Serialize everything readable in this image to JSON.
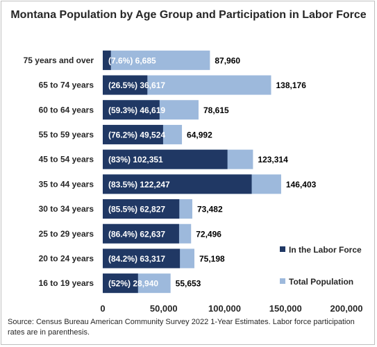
{
  "chart_data": {
    "type": "bar",
    "orientation": "horizontal",
    "title": "Montana Population by Age Group and Participation in Labor Force",
    "categories": [
      "75 years and over",
      "65 to 74 years",
      "60 to 64 years",
      "55 to 59 years",
      "45 to 54 years",
      "35 to 44 years",
      "30 to 34 years",
      "25 to 29 years",
      "20 to 24 years",
      "16 to 19 years"
    ],
    "series": [
      {
        "name": "In the Labor Force",
        "color": "#203864",
        "values": [
          6685,
          36617,
          46619,
          49524,
          102351,
          122247,
          62827,
          62637,
          63317,
          28940
        ],
        "labels": [
          "(7.6%) 6,685",
          "(26.5%) 36,617",
          "(59.3%) 46,619",
          "(76.2%) 49,524",
          "(83%) 102,351",
          "(83.5%) 122,247",
          "(85.5%) 62,827",
          "(86.4%) 62,637",
          "(84.2%) 63,317",
          "(52%) 28,940"
        ]
      },
      {
        "name": "Total Population",
        "color": "#9db9dc",
        "values": [
          87960,
          138176,
          78615,
          64992,
          123314,
          146403,
          73482,
          72496,
          75198,
          55653
        ],
        "labels": [
          "87,960",
          "138,176",
          "78,615",
          "64,992",
          "123,314",
          "146,403",
          "73,482",
          "72,496",
          "75,198",
          "55,653"
        ]
      }
    ],
    "xlim": [
      0,
      200000
    ],
    "xticks": [
      "0",
      "50,000",
      "100,000",
      "150,000",
      "200,000"
    ],
    "grid": false,
    "legend": "right"
  },
  "source_note": "Source: Census Bureau American Community Survey 2022 1-Year Estimates. Labor force participation rates are in parenthesis."
}
